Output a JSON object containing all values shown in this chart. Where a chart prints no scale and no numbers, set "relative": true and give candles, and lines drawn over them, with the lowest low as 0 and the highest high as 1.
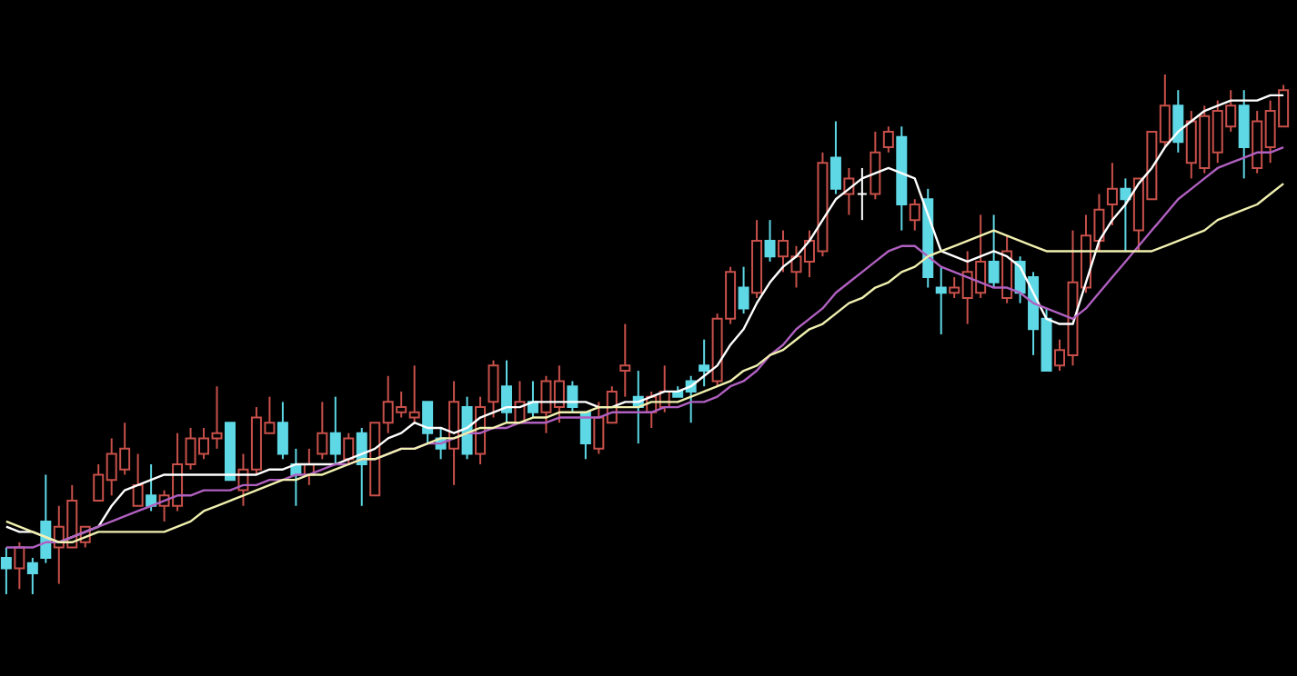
{
  "chart_data": {
    "type": "candlestick",
    "relative": true,
    "tick_labels": false,
    "categories": [
      null,
      null,
      null,
      null,
      null,
      null,
      null,
      null,
      null,
      null,
      null,
      null,
      null,
      null,
      null,
      null,
      null,
      null,
      null,
      null,
      null,
      null,
      null,
      null,
      null,
      null,
      null,
      null,
      null,
      null,
      null,
      null,
      null,
      null,
      null,
      null,
      null,
      null,
      null,
      null,
      null,
      null,
      null,
      null,
      null,
      null,
      null,
      null,
      null,
      null,
      null,
      null,
      null,
      null,
      null,
      null,
      null,
      null,
      null,
      null,
      null,
      null,
      null,
      null,
      null,
      null,
      null,
      null,
      null,
      null,
      null,
      null,
      null,
      null,
      null,
      null,
      null,
      null,
      null,
      null,
      null,
      null,
      null,
      null,
      null,
      null,
      null,
      null,
      null,
      null,
      null,
      null,
      null,
      null,
      null,
      null,
      null,
      null
    ],
    "ohlc": [
      [
        0.07,
        0.09,
        0.0,
        0.05
      ],
      [
        0.05,
        0.1,
        0.01,
        0.09
      ],
      [
        0.06,
        0.07,
        0.0,
        0.04
      ],
      [
        0.14,
        0.23,
        0.06,
        0.07
      ],
      [
        0.09,
        0.17,
        0.02,
        0.13
      ],
      [
        0.09,
        0.21,
        0.09,
        0.18
      ],
      [
        0.1,
        0.13,
        0.09,
        0.13
      ],
      [
        0.18,
        0.25,
        0.18,
        0.23
      ],
      [
        0.22,
        0.3,
        0.19,
        0.27
      ],
      [
        0.24,
        0.33,
        0.23,
        0.28
      ],
      [
        0.17,
        0.27,
        0.17,
        0.21
      ],
      [
        0.19,
        0.25,
        0.16,
        0.17
      ],
      [
        0.17,
        0.2,
        0.14,
        0.19
      ],
      [
        0.17,
        0.31,
        0.16,
        0.25
      ],
      [
        0.25,
        0.32,
        0.24,
        0.3
      ],
      [
        0.27,
        0.32,
        0.26,
        0.3
      ],
      [
        0.3,
        0.4,
        0.28,
        0.31
      ],
      [
        0.33,
        0.33,
        0.22,
        0.22
      ],
      [
        0.2,
        0.27,
        0.17,
        0.24
      ],
      [
        0.24,
        0.36,
        0.23,
        0.34
      ],
      [
        0.31,
        0.38,
        0.31,
        0.33
      ],
      [
        0.33,
        0.37,
        0.26,
        0.27
      ],
      [
        0.25,
        0.28,
        0.17,
        0.23
      ],
      [
        0.23,
        0.28,
        0.21,
        0.25
      ],
      [
        0.27,
        0.37,
        0.26,
        0.31
      ],
      [
        0.31,
        0.38,
        0.25,
        0.27
      ],
      [
        0.26,
        0.31,
        0.25,
        0.3
      ],
      [
        0.31,
        0.32,
        0.17,
        0.25
      ],
      [
        0.19,
        0.33,
        0.19,
        0.33
      ],
      [
        0.33,
        0.42,
        0.31,
        0.37
      ],
      [
        0.35,
        0.39,
        0.34,
        0.36
      ],
      [
        0.34,
        0.44,
        0.33,
        0.35
      ],
      [
        0.37,
        0.37,
        0.29,
        0.31
      ],
      [
        0.3,
        0.32,
        0.26,
        0.28
      ],
      [
        0.28,
        0.41,
        0.21,
        0.37
      ],
      [
        0.36,
        0.38,
        0.26,
        0.27
      ],
      [
        0.27,
        0.38,
        0.25,
        0.36
      ],
      [
        0.37,
        0.45,
        0.34,
        0.44
      ],
      [
        0.4,
        0.45,
        0.33,
        0.35
      ],
      [
        0.33,
        0.41,
        0.33,
        0.37
      ],
      [
        0.37,
        0.41,
        0.34,
        0.35
      ],
      [
        0.35,
        0.42,
        0.31,
        0.41
      ],
      [
        0.36,
        0.44,
        0.33,
        0.41
      ],
      [
        0.4,
        0.41,
        0.35,
        0.36
      ],
      [
        0.35,
        0.35,
        0.26,
        0.29
      ],
      [
        0.28,
        0.37,
        0.27,
        0.34
      ],
      [
        0.33,
        0.4,
        0.33,
        0.39
      ],
      [
        0.43,
        0.52,
        0.38,
        0.44
      ],
      [
        0.38,
        0.43,
        0.29,
        0.36
      ],
      [
        0.35,
        0.39,
        0.32,
        0.38
      ],
      [
        0.36,
        0.44,
        0.35,
        0.39
      ],
      [
        0.39,
        0.4,
        0.38,
        0.38
      ],
      [
        0.41,
        0.42,
        0.33,
        0.39
      ],
      [
        0.44,
        0.49,
        0.4,
        0.43
      ],
      [
        0.41,
        0.54,
        0.4,
        0.53
      ],
      [
        0.53,
        0.63,
        0.52,
        0.62
      ],
      [
        0.59,
        0.63,
        0.54,
        0.55
      ],
      [
        0.58,
        0.72,
        0.57,
        0.68
      ],
      [
        0.68,
        0.72,
        0.64,
        0.65
      ],
      [
        0.65,
        0.7,
        0.62,
        0.68
      ],
      [
        0.62,
        0.67,
        0.59,
        0.65
      ],
      [
        0.64,
        0.7,
        0.61,
        0.68
      ],
      [
        0.66,
        0.85,
        0.65,
        0.83
      ],
      [
        0.84,
        0.91,
        0.77,
        0.78
      ],
      [
        0.77,
        0.82,
        0.73,
        0.8
      ],
      [
        0.77,
        0.82,
        0.72,
        0.77
      ],
      [
        0.77,
        0.89,
        0.76,
        0.85
      ],
      [
        0.86,
        0.9,
        0.85,
        0.89
      ],
      [
        0.88,
        0.9,
        0.7,
        0.75
      ],
      [
        0.72,
        0.76,
        0.7,
        0.75
      ],
      [
        0.76,
        0.78,
        0.59,
        0.61
      ],
      [
        0.59,
        0.63,
        0.5,
        0.58
      ],
      [
        0.58,
        0.61,
        0.57,
        0.59
      ],
      [
        0.57,
        0.66,
        0.52,
        0.62
      ],
      [
        0.58,
        0.73,
        0.57,
        0.64
      ],
      [
        0.64,
        0.73,
        0.59,
        0.6
      ],
      [
        0.57,
        0.69,
        0.56,
        0.66
      ],
      [
        0.64,
        0.65,
        0.56,
        0.58
      ],
      [
        0.61,
        0.62,
        0.46,
        0.51
      ],
      [
        0.53,
        0.55,
        0.43,
        0.43
      ],
      [
        0.44,
        0.49,
        0.43,
        0.47
      ],
      [
        0.46,
        0.7,
        0.44,
        0.6
      ],
      [
        0.59,
        0.73,
        0.58,
        0.69
      ],
      [
        0.68,
        0.77,
        0.66,
        0.74
      ],
      [
        0.75,
        0.83,
        0.71,
        0.78
      ],
      [
        0.78,
        0.8,
        0.66,
        0.76
      ],
      [
        0.7,
        0.8,
        0.66,
        0.8
      ],
      [
        0.76,
        0.89,
        0.76,
        0.89
      ],
      [
        0.87,
        1.0,
        0.86,
        0.94
      ],
      [
        0.94,
        0.97,
        0.85,
        0.87
      ],
      [
        0.83,
        0.93,
        0.8,
        0.91
      ],
      [
        0.82,
        0.94,
        0.81,
        0.92
      ],
      [
        0.85,
        0.95,
        0.83,
        0.93
      ],
      [
        0.9,
        0.97,
        0.89,
        0.94
      ],
      [
        0.94,
        0.97,
        0.8,
        0.86
      ],
      [
        0.82,
        0.93,
        0.81,
        0.91
      ],
      [
        0.86,
        0.95,
        0.83,
        0.93
      ],
      [
        0.9,
        0.98,
        0.9,
        0.97
      ]
    ],
    "colors": [
      "#5fd8e6",
      "#c8504a",
      "#5fd8e6",
      "#5fd8e6",
      "#c8504a",
      "#c8504a",
      "#c8504a",
      "#c8504a",
      "#c8504a",
      "#c8504a",
      "#c8504a",
      "#5fd8e6",
      "#c8504a",
      "#c8504a",
      "#c8504a",
      "#c8504a",
      "#c8504a",
      "#5fd8e6",
      "#c8504a",
      "#c8504a",
      "#c8504a",
      "#5fd8e6",
      "#5fd8e6",
      "#c8504a",
      "#c8504a",
      "#5fd8e6",
      "#c8504a",
      "#5fd8e6",
      "#c8504a",
      "#c8504a",
      "#c8504a",
      "#c8504a",
      "#5fd8e6",
      "#5fd8e6",
      "#c8504a",
      "#5fd8e6",
      "#c8504a",
      "#c8504a",
      "#5fd8e6",
      "#c8504a",
      "#5fd8e6",
      "#c8504a",
      "#c8504a",
      "#5fd8e6",
      "#5fd8e6",
      "#c8504a",
      "#c8504a",
      "#c8504a",
      "#5fd8e6",
      "#c8504a",
      "#c8504a",
      "#5fd8e6",
      "#5fd8e6",
      "#5fd8e6",
      "#c8504a",
      "#c8504a",
      "#5fd8e6",
      "#c8504a",
      "#5fd8e6",
      "#c8504a",
      "#c8504a",
      "#c8504a",
      "#c8504a",
      "#5fd8e6",
      "#c8504a",
      "#ffffff",
      "#c8504a",
      "#c8504a",
      "#5fd8e6",
      "#c8504a",
      "#5fd8e6",
      "#5fd8e6",
      "#c8504a",
      "#c8504a",
      "#c8504a",
      "#5fd8e6",
      "#c8504a",
      "#5fd8e6",
      "#5fd8e6",
      "#5fd8e6",
      "#c8504a",
      "#c8504a",
      "#c8504a",
      "#c8504a",
      "#c8504a",
      "#5fd8e6",
      "#c8504a",
      "#c8504a",
      "#c8504a",
      "#5fd8e6",
      "#c8504a",
      "#c8504a",
      "#c8504a",
      "#c8504a",
      "#5fd8e6",
      "#c8504a",
      "#c8504a",
      "#c8504a"
    ],
    "series": [
      {
        "type": "line",
        "color": "#ffffff",
        "values": [
          0.13,
          0.12,
          0.12,
          0.11,
          0.1,
          0.11,
          0.12,
          0.13,
          0.17,
          0.2,
          0.21,
          0.22,
          0.23,
          0.23,
          0.23,
          0.23,
          0.23,
          0.23,
          0.23,
          0.23,
          0.24,
          0.24,
          0.25,
          0.25,
          0.25,
          0.25,
          0.26,
          0.27,
          0.28,
          0.3,
          0.31,
          0.33,
          0.32,
          0.32,
          0.31,
          0.32,
          0.34,
          0.35,
          0.36,
          0.36,
          0.37,
          0.37,
          0.37,
          0.37,
          0.37,
          0.36,
          0.36,
          0.37,
          0.37,
          0.38,
          0.39,
          0.39,
          0.4,
          0.42,
          0.44,
          0.48,
          0.51,
          0.56,
          0.6,
          0.63,
          0.65,
          0.68,
          0.72,
          0.76,
          0.78,
          0.8,
          0.81,
          0.82,
          0.81,
          0.8,
          0.73,
          0.66,
          0.65,
          0.64,
          0.65,
          0.66,
          0.65,
          0.63,
          0.58,
          0.53,
          0.52,
          0.52,
          0.6,
          0.68,
          0.72,
          0.75,
          0.79,
          0.82,
          0.86,
          0.89,
          0.91,
          0.93,
          0.94,
          0.95,
          0.95,
          0.95,
          0.96,
          0.96
        ]
      },
      {
        "type": "line",
        "color": "#b060c0",
        "values": [
          0.09,
          0.09,
          0.09,
          0.1,
          0.1,
          0.11,
          0.12,
          0.13,
          0.14,
          0.15,
          0.16,
          0.17,
          0.18,
          0.19,
          0.19,
          0.2,
          0.2,
          0.2,
          0.21,
          0.21,
          0.22,
          0.22,
          0.23,
          0.23,
          0.24,
          0.25,
          0.25,
          0.26,
          0.26,
          0.27,
          0.28,
          0.28,
          0.29,
          0.29,
          0.3,
          0.31,
          0.31,
          0.32,
          0.32,
          0.33,
          0.33,
          0.33,
          0.34,
          0.34,
          0.34,
          0.34,
          0.35,
          0.35,
          0.35,
          0.35,
          0.36,
          0.36,
          0.37,
          0.37,
          0.38,
          0.4,
          0.41,
          0.43,
          0.46,
          0.48,
          0.51,
          0.53,
          0.55,
          0.58,
          0.6,
          0.62,
          0.64,
          0.66,
          0.67,
          0.67,
          0.65,
          0.63,
          0.62,
          0.61,
          0.6,
          0.59,
          0.59,
          0.58,
          0.56,
          0.55,
          0.54,
          0.53,
          0.55,
          0.58,
          0.61,
          0.64,
          0.67,
          0.7,
          0.73,
          0.76,
          0.78,
          0.8,
          0.82,
          0.83,
          0.84,
          0.85,
          0.85,
          0.86
        ]
      },
      {
        "type": "line",
        "color": "#f0f0b0",
        "values": [
          0.14,
          0.13,
          0.12,
          0.11,
          0.1,
          0.1,
          0.11,
          0.12,
          0.12,
          0.12,
          0.12,
          0.12,
          0.12,
          0.13,
          0.14,
          0.16,
          0.17,
          0.18,
          0.19,
          0.2,
          0.21,
          0.22,
          0.22,
          0.23,
          0.23,
          0.24,
          0.25,
          0.26,
          0.26,
          0.27,
          0.28,
          0.28,
          0.29,
          0.3,
          0.3,
          0.31,
          0.32,
          0.32,
          0.33,
          0.33,
          0.34,
          0.34,
          0.35,
          0.35,
          0.35,
          0.36,
          0.36,
          0.36,
          0.36,
          0.37,
          0.37,
          0.37,
          0.38,
          0.39,
          0.4,
          0.41,
          0.43,
          0.44,
          0.46,
          0.47,
          0.49,
          0.51,
          0.52,
          0.54,
          0.56,
          0.57,
          0.59,
          0.6,
          0.62,
          0.63,
          0.65,
          0.66,
          0.67,
          0.68,
          0.69,
          0.7,
          0.69,
          0.68,
          0.67,
          0.66,
          0.66,
          0.66,
          0.66,
          0.66,
          0.66,
          0.66,
          0.66,
          0.66,
          0.67,
          0.68,
          0.69,
          0.7,
          0.72,
          0.73,
          0.74,
          0.75,
          0.77,
          0.79
        ]
      }
    ]
  }
}
